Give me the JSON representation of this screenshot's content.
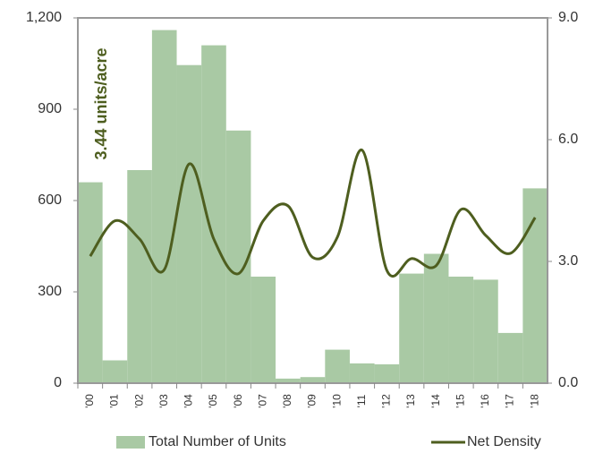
{
  "chart_data": {
    "type": "bar-line",
    "annotation": "3.44 units/acre",
    "categories": [
      "'00",
      "'01",
      "'02",
      "'03",
      "'04",
      "'05",
      "'06",
      "'07",
      "'08",
      "'09",
      "'10",
      "'11",
      "'12",
      "'13",
      "'14",
      "'15",
      "'16",
      "'17",
      "'18"
    ],
    "series": [
      {
        "name": "Total Number of Units",
        "type": "bar",
        "color": "#a9c9a4",
        "values": [
          660,
          75,
          700,
          1160,
          1045,
          1110,
          830,
          350,
          15,
          20,
          110,
          65,
          62,
          360,
          425,
          350,
          340,
          165,
          640
        ]
      },
      {
        "name": "Net Density",
        "type": "line",
        "axis": "y2",
        "color": "#4e5e1f",
        "values": [
          3.13,
          4.0,
          3.55,
          2.8,
          5.4,
          3.55,
          2.7,
          4.0,
          4.37,
          3.1,
          3.6,
          5.74,
          2.78,
          3.07,
          2.9,
          4.28,
          3.64,
          3.2,
          4.08
        ]
      }
    ],
    "ylim": [
      0,
      1200
    ],
    "yticks": [
      0,
      300,
      600,
      900,
      {
        "value": 1200,
        "label": "1,200"
      }
    ],
    "y2lim": [
      0,
      9
    ],
    "y2ticks": [
      {
        "value": 0,
        "label": "0.0"
      },
      {
        "value": 3,
        "label": "3.0"
      },
      {
        "value": 6,
        "label": "6.0"
      },
      {
        "value": 9,
        "label": "9.0"
      }
    ],
    "legend": "bottom"
  }
}
